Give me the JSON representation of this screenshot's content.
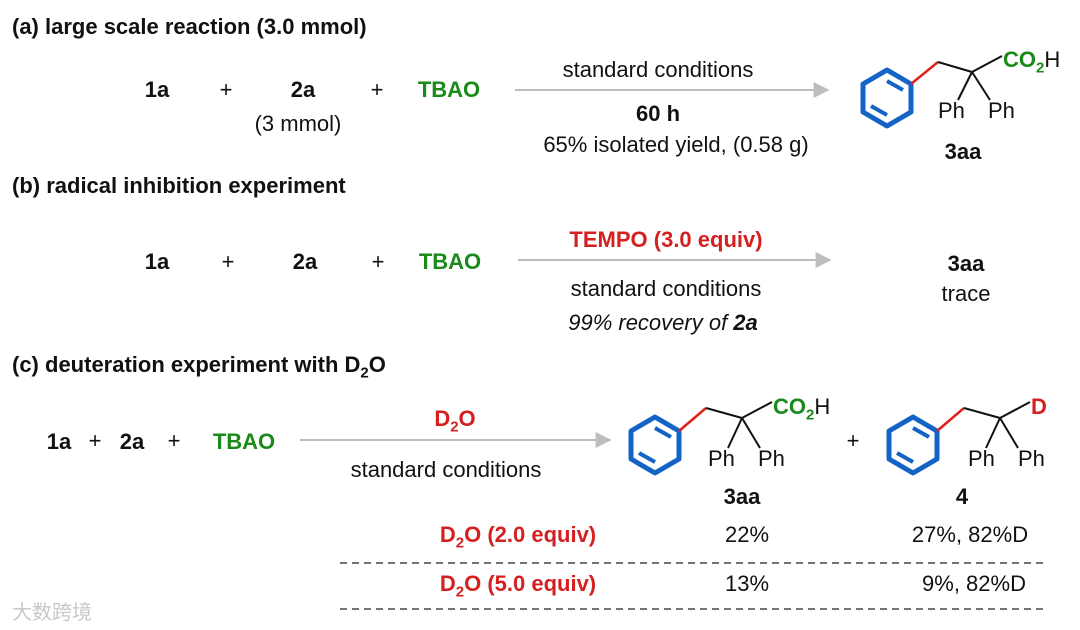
{
  "colors": {
    "green": "#1a8a1a",
    "red": "#d42020",
    "blue": "#1464c8",
    "arrow": "#bdbdbd"
  },
  "a": {
    "title": "(a) large scale reaction (3.0 mmol)",
    "r1": "1a",
    "plus": "+",
    "r2": "2a",
    "r2_sub": "(3 mmol)",
    "r3": "TBAO",
    "cond1": "standard conditions",
    "cond2": "60 h",
    "cond3": "65% isolated yield, (0.58 g)",
    "product": "3aa",
    "mol": {
      "co2h": "CO",
      "co2h_sub": "2",
      "co2h_h": "H",
      "ph1": "Ph",
      "ph2": "Ph"
    }
  },
  "b": {
    "title": "(b) radical inhibition experiment",
    "r1": "1a",
    "plus": "+",
    "r2": "2a",
    "r3": "TBAO",
    "cond_top": "TEMPO (3.0 equiv)",
    "cond1": "standard conditions",
    "cond2_pre": "99% recovery of ",
    "cond2_bold": "2a",
    "product": "3aa",
    "product_sub": "trace"
  },
  "c": {
    "title_pre": "(c) deuteration experiment with D",
    "title_sub": "2",
    "title_post": "O",
    "r1": "1a",
    "plus": "+",
    "r2": "2a",
    "r3": "TBAO",
    "cond_top_pre": "D",
    "cond_top_sub": "2",
    "cond_top_post": "O",
    "cond1": "standard conditions",
    "p1": "3aa",
    "p2": "4",
    "mol1": {
      "co2h": "CO",
      "co2h_sub": "2",
      "co2h_h": "H",
      "ph1": "Ph",
      "ph2": "Ph"
    },
    "mol2": {
      "d": "D",
      "ph1": "Ph",
      "ph2": "Ph"
    },
    "rows": [
      {
        "cond_pre": "D",
        "cond_sub": "2",
        "cond_post": "O (2.0 equiv)",
        "y3aa": "22%",
        "y4": "27%, 82%D"
      },
      {
        "cond_pre": "D",
        "cond_sub": "2",
        "cond_post": "O (5.0 equiv)",
        "y3aa": "13%",
        "y4": "9%, 82%D"
      }
    ]
  },
  "watermark": "大数跨境"
}
